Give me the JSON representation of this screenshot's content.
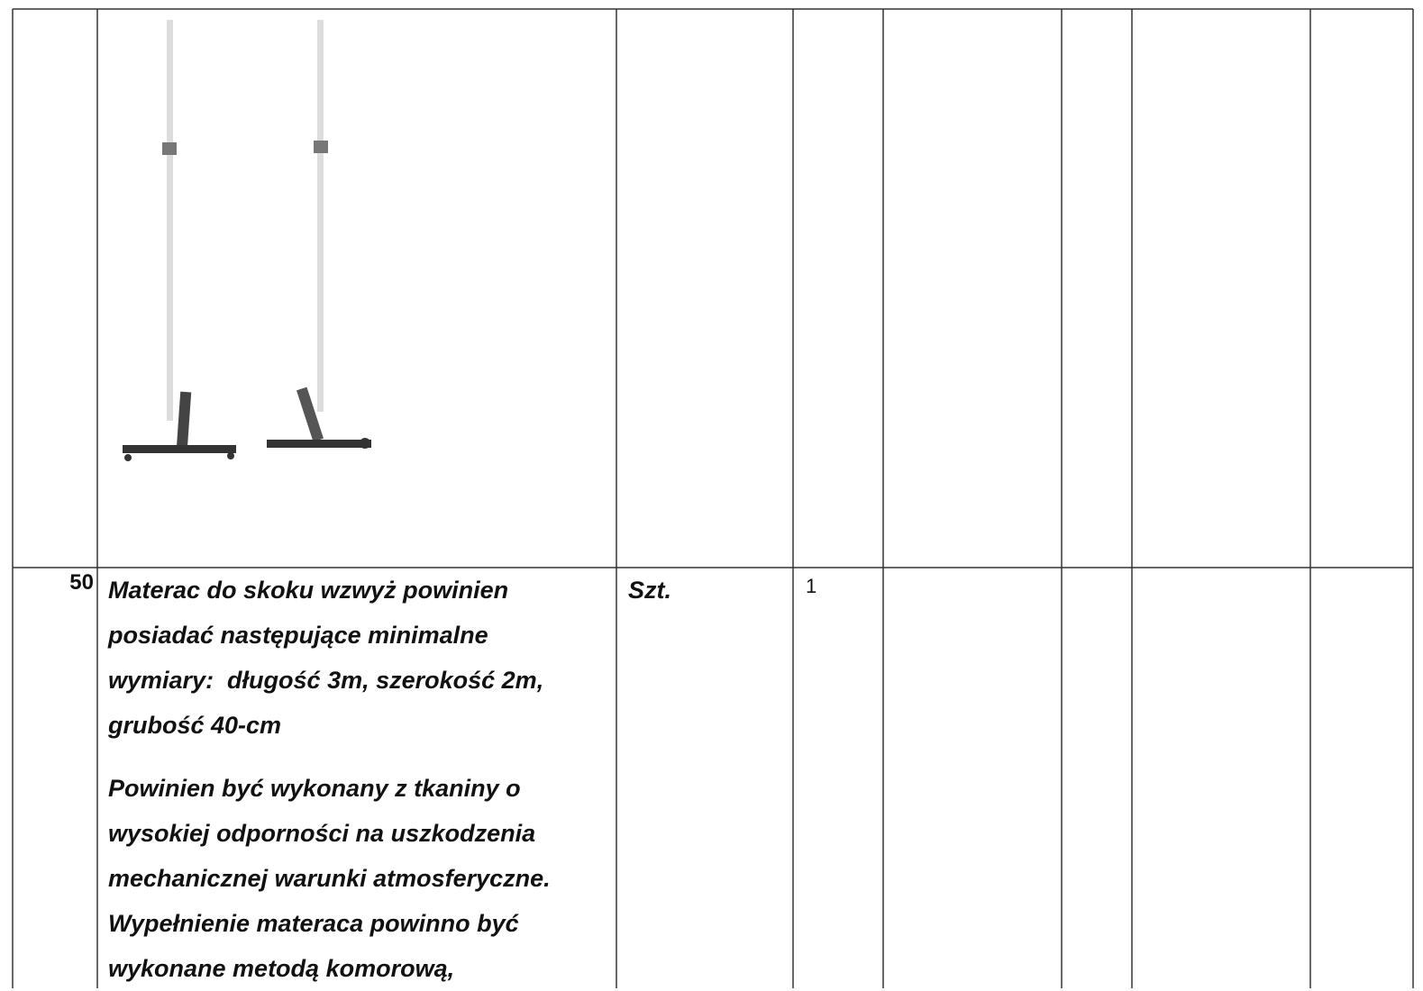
{
  "table": {
    "rows": [
      {
        "number": "50",
        "description": [
          [
            "Materac do skoku wzwyż powinien",
            "posiadać następujące minimalne",
            "wymiary:  długość 3m, szerokość 2m,",
            "grubość 40-cm"
          ],
          [
            "Powinien być wykonany z tkaniny o",
            "wysokiej odporności na uszkodzenia",
            "mechanicznej warunki atmosferyczne.",
            "Wypełnienie materaca powinno być",
            "wykonane metodą komorową,"
          ]
        ],
        "unit": "Szt.",
        "quantity": 1
      }
    ]
  }
}
